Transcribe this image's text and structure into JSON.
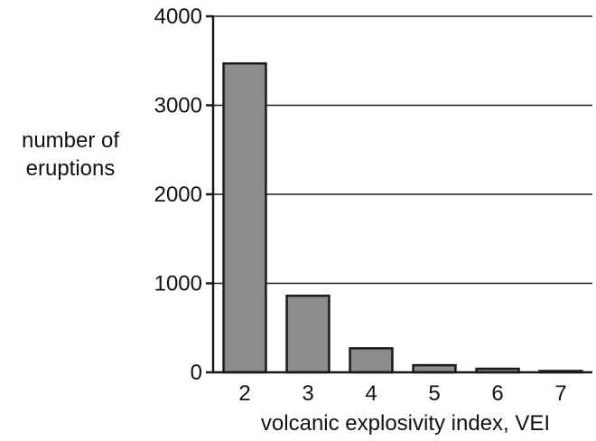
{
  "colors": {
    "bar_fill": "#8c8c8c",
    "bar_stroke": "#1a1a1a",
    "gridline": "#1a1a1a",
    "axis": "#1a1a1a",
    "text": "#111111",
    "background": "#ffffff"
  },
  "chart_data": {
    "type": "bar",
    "title": "",
    "xlabel": "volcanic explosivity index, VEI",
    "ylabel_lines": [
      "number of",
      "eruptions"
    ],
    "categories": [
      "2",
      "3",
      "4",
      "5",
      "6",
      "7"
    ],
    "values": [
      3470,
      860,
      270,
      80,
      40,
      15
    ],
    "ylim": [
      0,
      4000
    ],
    "yticks": [
      0,
      1000,
      2000,
      3000,
      4000
    ],
    "ytick_labels": [
      "0",
      "1000",
      "2000",
      "3000",
      "4000"
    ],
    "grid": true,
    "legend": "none"
  }
}
